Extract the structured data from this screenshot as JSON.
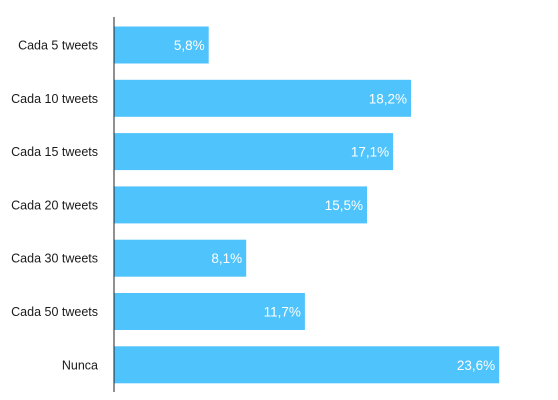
{
  "chart_data": {
    "type": "bar",
    "orientation": "horizontal",
    "categories": [
      "Cada 5 tweets",
      "Cada 10 tweets",
      "Cada 15 tweets",
      "Cada 20 tweets",
      "Cada 30 tweets",
      "Cada 50 tweets",
      "Nunca"
    ],
    "values": [
      5.8,
      18.2,
      17.1,
      15.5,
      8.1,
      11.7,
      23.6
    ],
    "value_labels": [
      "5,8%",
      "18,2%",
      "17,1%",
      "15,5%",
      "8,1%",
      "11,7%",
      "23,6%"
    ],
    "unit": "%",
    "xlim": [
      0,
      27
    ],
    "grid": false,
    "legend": "none",
    "bar_color": "#4fc3fb",
    "axis_color": "#222222"
  }
}
